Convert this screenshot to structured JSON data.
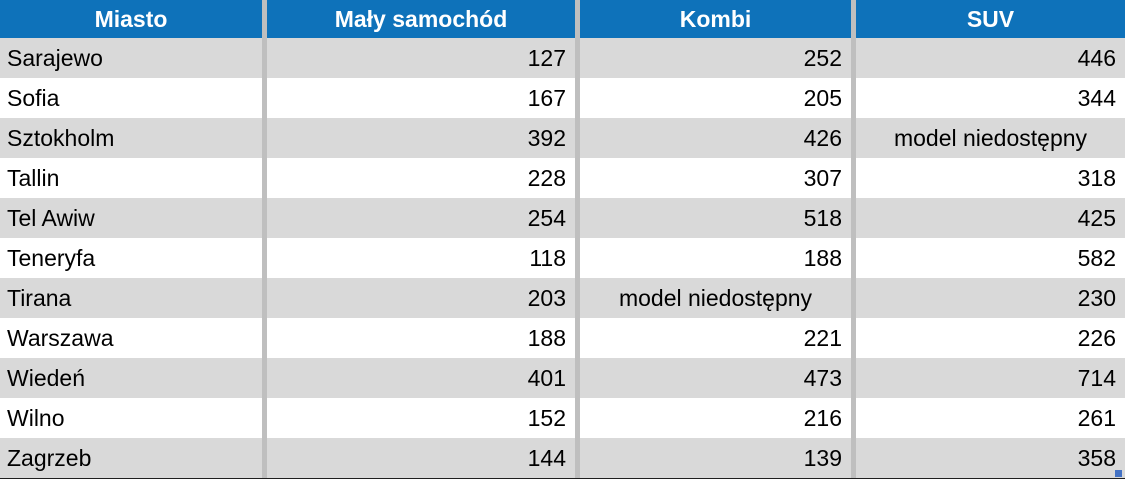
{
  "table": {
    "columns": [
      "Miasto",
      "Mały samochód",
      "Kombi",
      "SUV"
    ],
    "rows": [
      {
        "city": "Sarajewo",
        "values": [
          "127",
          "252",
          "446"
        ]
      },
      {
        "city": "Sofia",
        "values": [
          "167",
          "205",
          "344"
        ]
      },
      {
        "city": "Sztokholm",
        "values": [
          "392",
          "426",
          "model niedostępny"
        ]
      },
      {
        "city": "Tallin",
        "values": [
          "228",
          "307",
          "318"
        ]
      },
      {
        "city": "Tel Awiw",
        "values": [
          "254",
          "518",
          "425"
        ]
      },
      {
        "city": "Teneryfa",
        "values": [
          "118",
          "188",
          "582"
        ]
      },
      {
        "city": "Tirana",
        "values": [
          "203",
          "model niedostępny",
          "230"
        ]
      },
      {
        "city": "Warszawa",
        "values": [
          "188",
          "221",
          "226"
        ]
      },
      {
        "city": "Wiedeń",
        "values": [
          "401",
          "473",
          "714"
        ]
      },
      {
        "city": "Wilno",
        "values": [
          "152",
          "216",
          "261"
        ]
      },
      {
        "city": "Zagrzeb",
        "values": [
          "144",
          "139",
          "358"
        ]
      }
    ],
    "unavailable_label": "model niedostępny"
  },
  "colors": {
    "header_bg": "#0e72ba",
    "header_text": "#ffffff",
    "row_bg": "#ffffff",
    "row_alt_bg": "#d9d9d9",
    "separator": "#bfbfbf",
    "bottom_border": "#1f1f1f",
    "fill_handle": "#4472c4"
  },
  "icons": {
    "fill_handle": "selection-fill-handle"
  }
}
